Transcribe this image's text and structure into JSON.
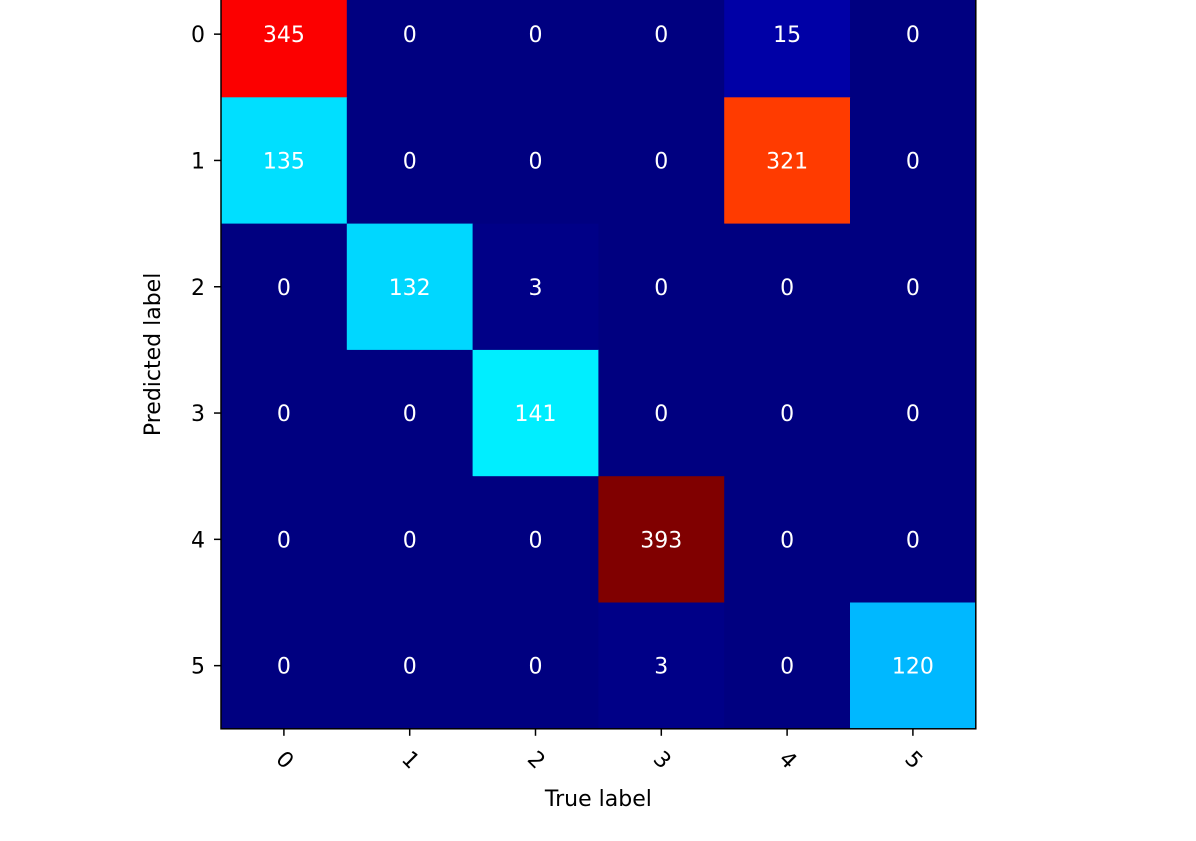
{
  "chart_data": {
    "type": "heatmap",
    "title": "",
    "xlabel": "True label",
    "ylabel": "Predicted label",
    "x_categories": [
      "0",
      "1",
      "2",
      "3",
      "4",
      "5"
    ],
    "y_categories": [
      "0",
      "1",
      "2",
      "3",
      "4",
      "5"
    ],
    "values": [
      [
        345,
        0,
        0,
        0,
        15,
        0
      ],
      [
        135,
        0,
        0,
        0,
        321,
        0
      ],
      [
        0,
        132,
        3,
        0,
        0,
        0
      ],
      [
        0,
        0,
        141,
        0,
        0,
        0
      ],
      [
        0,
        0,
        0,
        393,
        0,
        0
      ],
      [
        0,
        0,
        0,
        3,
        0,
        120
      ]
    ],
    "colormap": "jet",
    "value_range": [
      0,
      393
    ],
    "grid": false,
    "x_tick_rotation": 45
  }
}
